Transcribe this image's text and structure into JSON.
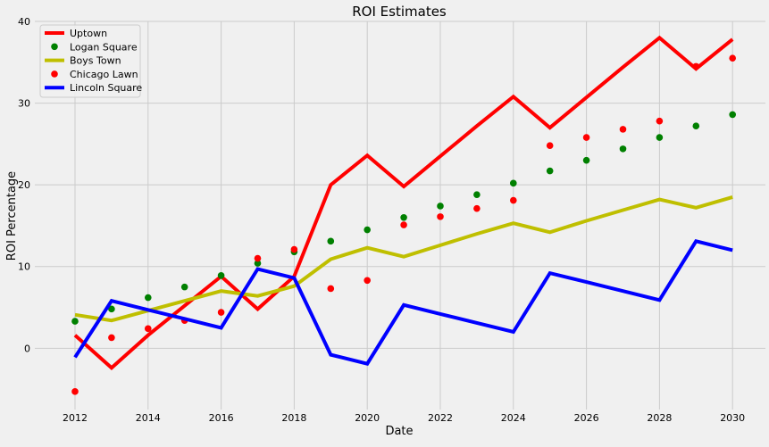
{
  "chart_data": {
    "type": "line",
    "title": "ROI Estimates",
    "xlabel": "Date",
    "ylabel": "ROI Percentage",
    "xlim": [
      2010.9,
      2030.9
    ],
    "ylim": [
      -7.5,
      40
    ],
    "xticks": [
      2012,
      2014,
      2016,
      2018,
      2020,
      2022,
      2024,
      2026,
      2028,
      2030
    ],
    "yticks": [
      0,
      10,
      20,
      30,
      40
    ],
    "grid": true,
    "legend_position": "top-left",
    "x": [
      2012,
      2013,
      2014,
      2015,
      2016,
      2017,
      2018,
      2019,
      2020,
      2021,
      2022,
      2023,
      2024,
      2025,
      2026,
      2027,
      2028,
      2029,
      2030
    ],
    "series": [
      {
        "name": "Uptown",
        "kind": "line",
        "color": "#ff0000",
        "values": [
          1.6,
          -2.4,
          1.6,
          5.2,
          8.8,
          4.8,
          8.8,
          20.0,
          23.6,
          19.8,
          23.5,
          27.2,
          30.8,
          27.0,
          30.7,
          34.4,
          38.0,
          34.2,
          37.8
        ]
      },
      {
        "name": "Logan Square",
        "kind": "scatter",
        "color": "#008000",
        "values": [
          3.3,
          4.8,
          6.2,
          7.5,
          8.9,
          10.4,
          11.8,
          13.1,
          14.5,
          16.0,
          17.4,
          18.8,
          20.2,
          21.7,
          23.0,
          24.4,
          25.8,
          27.2,
          28.6
        ]
      },
      {
        "name": "Boys Town",
        "kind": "line",
        "color": "#bfbf00",
        "values": [
          4.1,
          3.4,
          4.6,
          5.8,
          7.0,
          6.4,
          7.6,
          10.9,
          12.3,
          11.2,
          12.6,
          14.0,
          15.3,
          14.2,
          15.6,
          16.9,
          18.2,
          17.2,
          18.5
        ]
      },
      {
        "name": "Chicago Lawn",
        "kind": "scatter",
        "color": "#ff0000",
        "values": [
          -5.3,
          1.3,
          2.4,
          3.4,
          4.4,
          11.0,
          12.1,
          7.3,
          8.3,
          15.1,
          16.1,
          17.1,
          18.1,
          24.8,
          25.8,
          26.8,
          27.8,
          34.5,
          35.5
        ]
      },
      {
        "name": "Lincoln Square",
        "kind": "line",
        "color": "#0000ff",
        "values": [
          -1.1,
          5.8,
          4.7,
          3.6,
          2.5,
          9.7,
          8.6,
          -0.8,
          -1.9,
          5.3,
          4.2,
          3.1,
          2.0,
          9.2,
          8.1,
          7.0,
          5.9,
          13.1,
          12.0
        ]
      }
    ]
  }
}
